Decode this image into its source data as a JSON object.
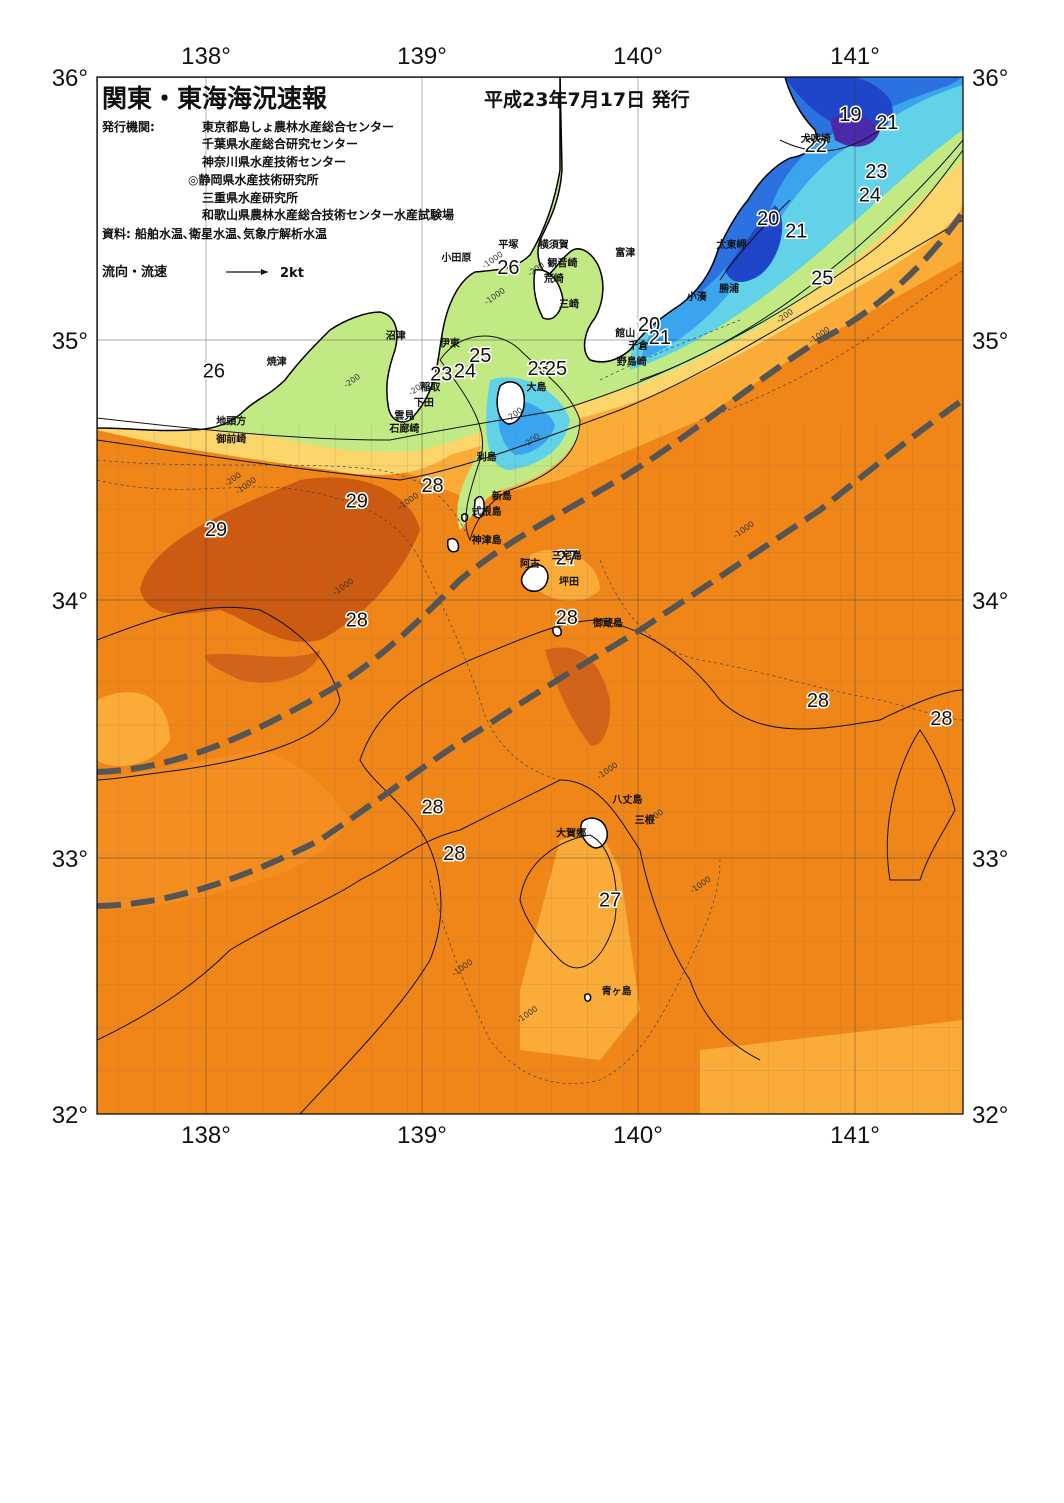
{
  "header": {
    "title": "関東・東海海況速報",
    "date": "平成23年7月17日 発行",
    "publisher_label": "発行機関:",
    "publishers": [
      "東京都島しょ農林水産総合センター",
      "千葉県水産総合研究センター",
      "神奈川県水産技術センター",
      "◎静岡県水産技術研究所",
      "三重県水産研究所",
      "和歌山県農林水産総合技術センター水産試験場"
    ],
    "source": "資料: 船舶水温､衛星水温､気象庁解析水温",
    "legend_label": "流向・流速",
    "legend_speed": "2kt"
  },
  "axes": {
    "lon_top": [
      "138°",
      "139°",
      "140°",
      "141°"
    ],
    "lon_bottom": [
      "138°",
      "139°",
      "140°",
      "141°"
    ],
    "lat_left": [
      "36°",
      "35°",
      "34°",
      "33°",
      "32°"
    ],
    "lat_right": [
      "36°",
      "35°",
      "34°",
      "33°",
      "32°"
    ]
  },
  "chart_data": {
    "type": "map",
    "lon_range": [
      137.4,
      141.4
    ],
    "lat_range": [
      32.0,
      36.0
    ],
    "isotherm_labels": [
      {
        "t": "19",
        "lon": 140.88,
        "lat": 35.83
      },
      {
        "t": "21",
        "lon": 141.05,
        "lat": 35.8
      },
      {
        "t": "22",
        "lon": 140.72,
        "lat": 35.71
      },
      {
        "t": "23",
        "lon": 141.0,
        "lat": 35.61
      },
      {
        "t": "24",
        "lon": 140.97,
        "lat": 35.52
      },
      {
        "t": "20",
        "lon": 140.5,
        "lat": 35.43
      },
      {
        "t": "21",
        "lon": 140.63,
        "lat": 35.38
      },
      {
        "t": "25",
        "lon": 140.75,
        "lat": 35.2
      },
      {
        "t": "20",
        "lon": 139.95,
        "lat": 35.02
      },
      {
        "t": "21",
        "lon": 140.0,
        "lat": 34.97
      },
      {
        "t": "26",
        "lon": 139.3,
        "lat": 35.24
      },
      {
        "t": "25",
        "lon": 139.17,
        "lat": 34.9
      },
      {
        "t": "24",
        "lon": 139.1,
        "lat": 34.84
      },
      {
        "t": "23",
        "lon": 138.99,
        "lat": 34.83
      },
      {
        "t": "23",
        "lon": 139.44,
        "lat": 34.85
      },
      {
        "t": "25",
        "lon": 139.52,
        "lat": 34.85
      },
      {
        "t": "26",
        "lon": 137.94,
        "lat": 34.84
      },
      {
        "t": "28",
        "lon": 138.95,
        "lat": 34.4
      },
      {
        "t": "29",
        "lon": 138.6,
        "lat": 34.34
      },
      {
        "t": "29",
        "lon": 137.95,
        "lat": 34.23
      },
      {
        "t": "27",
        "lon": 139.57,
        "lat": 34.12
      },
      {
        "t": "28",
        "lon": 138.6,
        "lat": 33.88
      },
      {
        "t": "28",
        "lon": 139.57,
        "lat": 33.89
      },
      {
        "t": "28",
        "lon": 140.73,
        "lat": 33.57
      },
      {
        "t": "28",
        "lon": 141.3,
        "lat": 33.5
      },
      {
        "t": "28",
        "lon": 138.95,
        "lat": 33.16
      },
      {
        "t": "28",
        "lon": 139.05,
        "lat": 32.98
      },
      {
        "t": "27",
        "lon": 139.77,
        "lat": 32.8
      }
    ],
    "place_names": [
      {
        "t": "犬吠埼",
        "lon": 140.72,
        "lat": 35.75
      },
      {
        "t": "太東岬",
        "lon": 140.33,
        "lat": 35.34
      },
      {
        "t": "勝浦",
        "lon": 140.32,
        "lat": 35.17
      },
      {
        "t": "小湊",
        "lon": 140.17,
        "lat": 35.14
      },
      {
        "t": "館山",
        "lon": 139.84,
        "lat": 35.0
      },
      {
        "t": "千倉",
        "lon": 139.9,
        "lat": 34.95
      },
      {
        "t": "野島崎",
        "lon": 139.87,
        "lat": 34.89
      },
      {
        "t": "富津",
        "lon": 139.84,
        "lat": 35.31
      },
      {
        "t": "横須賀",
        "lon": 139.51,
        "lat": 35.34
      },
      {
        "t": "観音崎",
        "lon": 139.55,
        "lat": 35.27
      },
      {
        "t": "荒崎",
        "lon": 139.51,
        "lat": 35.21
      },
      {
        "t": "三崎",
        "lon": 139.58,
        "lat": 35.11
      },
      {
        "t": "平塚",
        "lon": 139.3,
        "lat": 35.34
      },
      {
        "t": "小田原",
        "lon": 139.06,
        "lat": 35.29
      },
      {
        "t": "沼津",
        "lon": 138.78,
        "lat": 34.99
      },
      {
        "t": "伊東",
        "lon": 139.03,
        "lat": 34.96
      },
      {
        "t": "焼津",
        "lon": 138.23,
        "lat": 34.89
      },
      {
        "t": "稲取",
        "lon": 138.94,
        "lat": 34.79
      },
      {
        "t": "下田",
        "lon": 138.91,
        "lat": 34.73
      },
      {
        "t": "雲見",
        "lon": 138.82,
        "lat": 34.68
      },
      {
        "t": "石廊崎",
        "lon": 138.82,
        "lat": 34.63
      },
      {
        "t": "地頭方",
        "lon": 138.02,
        "lat": 34.66
      },
      {
        "t": "御前崎",
        "lon": 138.02,
        "lat": 34.59
      },
      {
        "t": "大島",
        "lon": 139.43,
        "lat": 34.79
      },
      {
        "t": "利島",
        "lon": 139.2,
        "lat": 34.52
      },
      {
        "t": "新島",
        "lon": 139.27,
        "lat": 34.37
      },
      {
        "t": "式根島",
        "lon": 139.2,
        "lat": 34.31
      },
      {
        "t": "神津島",
        "lon": 139.2,
        "lat": 34.2
      },
      {
        "t": "阿古",
        "lon": 139.4,
        "lat": 34.11
      },
      {
        "t": "三宅島",
        "lon": 139.57,
        "lat": 34.14
      },
      {
        "t": "坪田",
        "lon": 139.58,
        "lat": 34.04
      },
      {
        "t": "御蔵島",
        "lon": 139.76,
        "lat": 33.88
      },
      {
        "t": "八丈島",
        "lon": 139.85,
        "lat": 33.2
      },
      {
        "t": "三根",
        "lon": 139.93,
        "lat": 33.12
      },
      {
        "t": "大賀郷",
        "lon": 139.59,
        "lat": 33.07
      },
      {
        "t": "青ヶ島",
        "lon": 139.8,
        "lat": 32.46
      }
    ],
    "depth_labels": [
      "-200",
      "-1000"
    ],
    "colors": {
      "t29": "#cc5a10",
      "t28": "#f08518",
      "t27": "#fbab38",
      "t26": "#fcd66a",
      "t25": "#c2ea84",
      "t24": "#7fd6a0",
      "t23": "#62d2e8",
      "t22": "#3aa4ee",
      "t21": "#2b72e0",
      "t20": "#1f46c8",
      "t19": "#4a2aa8",
      "land": "#ffffff",
      "kuroshio": "#555555"
    }
  }
}
